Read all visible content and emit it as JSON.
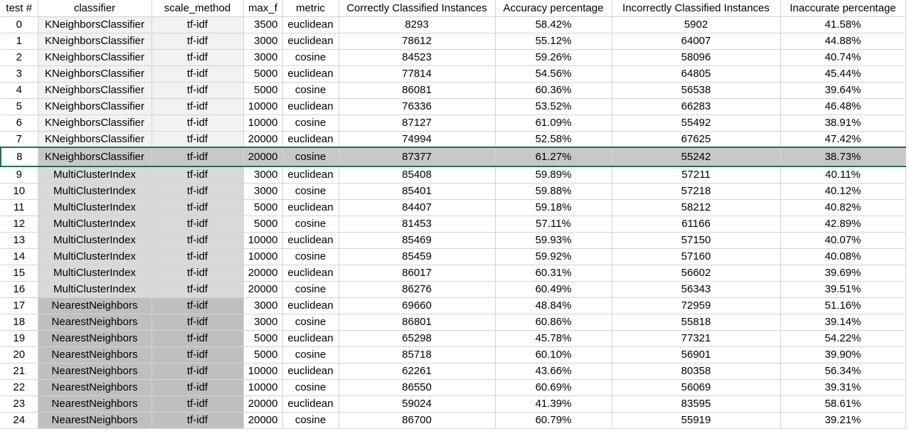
{
  "headers": [
    "test #",
    "classifier",
    "scale_method",
    "max_f",
    "metric",
    "Correctly Classified Instances",
    "Accuracy percentage",
    "Incorrectly Classified Instances",
    "Inaccurate percentage"
  ],
  "selected_row_index": 8,
  "group_colors": {
    "KNeighborsClassifier": "#f2f2f2",
    "MultiClusterIndex": "#d9d9d9",
    "NearestNeighbors": "#bfbfbf",
    "selection_border": "#217346"
  },
  "rows": [
    [
      "0",
      "KNeighborsClassifier",
      "tf-idf",
      "3500",
      "euclidean",
      "8293",
      "58.42%",
      "5902",
      "41.58%"
    ],
    [
      "1",
      "KNeighborsClassifier",
      "tf-idf",
      "3000",
      "euclidean",
      "78612",
      "55.12%",
      "64007",
      "44.88%"
    ],
    [
      "2",
      "KNeighborsClassifier",
      "tf-idf",
      "3000",
      "cosine",
      "84523",
      "59.26%",
      "58096",
      "40.74%"
    ],
    [
      "3",
      "KNeighborsClassifier",
      "tf-idf",
      "5000",
      "euclidean",
      "77814",
      "54.56%",
      "64805",
      "45.44%"
    ],
    [
      "4",
      "KNeighborsClassifier",
      "tf-idf",
      "5000",
      "cosine",
      "86081",
      "60.36%",
      "56538",
      "39.64%"
    ],
    [
      "5",
      "KNeighborsClassifier",
      "tf-idf",
      "10000",
      "euclidean",
      "76336",
      "53.52%",
      "66283",
      "46.48%"
    ],
    [
      "6",
      "KNeighborsClassifier",
      "tf-idf",
      "10000",
      "cosine",
      "87127",
      "61.09%",
      "55492",
      "38.91%"
    ],
    [
      "7",
      "KNeighborsClassifier",
      "tf-idf",
      "20000",
      "euclidean",
      "74994",
      "52.58%",
      "67625",
      "47.42%"
    ],
    [
      "8",
      "KNeighborsClassifier",
      "tf-idf",
      "20000",
      "cosine",
      "87377",
      "61.27%",
      "55242",
      "38.73%"
    ],
    [
      "9",
      "MultiClusterIndex",
      "tf-idf",
      "3000",
      "euclidean",
      "85408",
      "59.89%",
      "57211",
      "40.11%"
    ],
    [
      "10",
      "MultiClusterIndex",
      "tf-idf",
      "3000",
      "cosine",
      "85401",
      "59.88%",
      "57218",
      "40.12%"
    ],
    [
      "11",
      "MultiClusterIndex",
      "tf-idf",
      "5000",
      "euclidean",
      "84407",
      "59.18%",
      "58212",
      "40.82%"
    ],
    [
      "12",
      "MultiClusterIndex",
      "tf-idf",
      "5000",
      "cosine",
      "81453",
      "57.11%",
      "61166",
      "42.89%"
    ],
    [
      "13",
      "MultiClusterIndex",
      "tf-idf",
      "10000",
      "euclidean",
      "85469",
      "59.93%",
      "57150",
      "40.07%"
    ],
    [
      "14",
      "MultiClusterIndex",
      "tf-idf",
      "10000",
      "cosine",
      "85459",
      "59.92%",
      "57160",
      "40.08%"
    ],
    [
      "15",
      "MultiClusterIndex",
      "tf-idf",
      "20000",
      "euclidean",
      "86017",
      "60.31%",
      "56602",
      "39.69%"
    ],
    [
      "16",
      "MultiClusterIndex",
      "tf-idf",
      "20000",
      "cosine",
      "86276",
      "60.49%",
      "56343",
      "39.51%"
    ],
    [
      "17",
      "NearestNeighbors",
      "tf-idf",
      "3000",
      "euclidean",
      "69660",
      "48.84%",
      "72959",
      "51.16%"
    ],
    [
      "18",
      "NearestNeighbors",
      "tf-idf",
      "3000",
      "cosine",
      "86801",
      "60.86%",
      "55818",
      "39.14%"
    ],
    [
      "19",
      "NearestNeighbors",
      "tf-idf",
      "5000",
      "euclidean",
      "65298",
      "45.78%",
      "77321",
      "54.22%"
    ],
    [
      "20",
      "NearestNeighbors",
      "tf-idf",
      "5000",
      "cosine",
      "85718",
      "60.10%",
      "56901",
      "39.90%"
    ],
    [
      "21",
      "NearestNeighbors",
      "tf-idf",
      "10000",
      "euclidean",
      "62261",
      "43.66%",
      "80358",
      "56.34%"
    ],
    [
      "22",
      "NearestNeighbors",
      "tf-idf",
      "10000",
      "cosine",
      "86550",
      "60.69%",
      "56069",
      "39.31%"
    ],
    [
      "23",
      "NearestNeighbors",
      "tf-idf",
      "20000",
      "euclidean",
      "59024",
      "41.39%",
      "83595",
      "58.61%"
    ],
    [
      "24",
      "NearestNeighbors",
      "tf-idf",
      "20000",
      "cosine",
      "86700",
      "60.79%",
      "55919",
      "39.21%"
    ]
  ]
}
